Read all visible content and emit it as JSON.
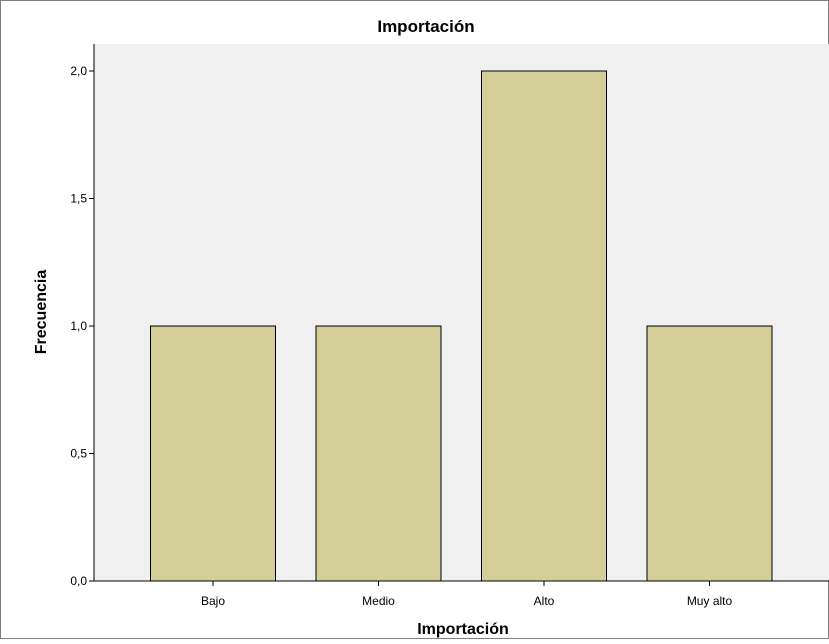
{
  "chart_data": {
    "type": "bar",
    "title": "Importación",
    "xlabel": "Importación",
    "ylabel": "Frecuencia",
    "categories": [
      "Bajo",
      "Medio",
      "Alto",
      "Muy alto"
    ],
    "values": [
      1,
      1,
      2,
      1
    ],
    "ylim": [
      0,
      2.0
    ],
    "yticks": [
      0,
      0.5,
      1.0,
      1.5,
      2.0
    ],
    "ytick_labels": [
      "0,0",
      "0,5",
      "1,0",
      "1,5",
      "2,0"
    ],
    "grid": false,
    "legend": "none",
    "colors": {
      "bar_fill": "#d3ce98",
      "bar_stroke": "#000000",
      "plot_background": "#f0f0f0",
      "page_background": "#ffffff"
    }
  }
}
